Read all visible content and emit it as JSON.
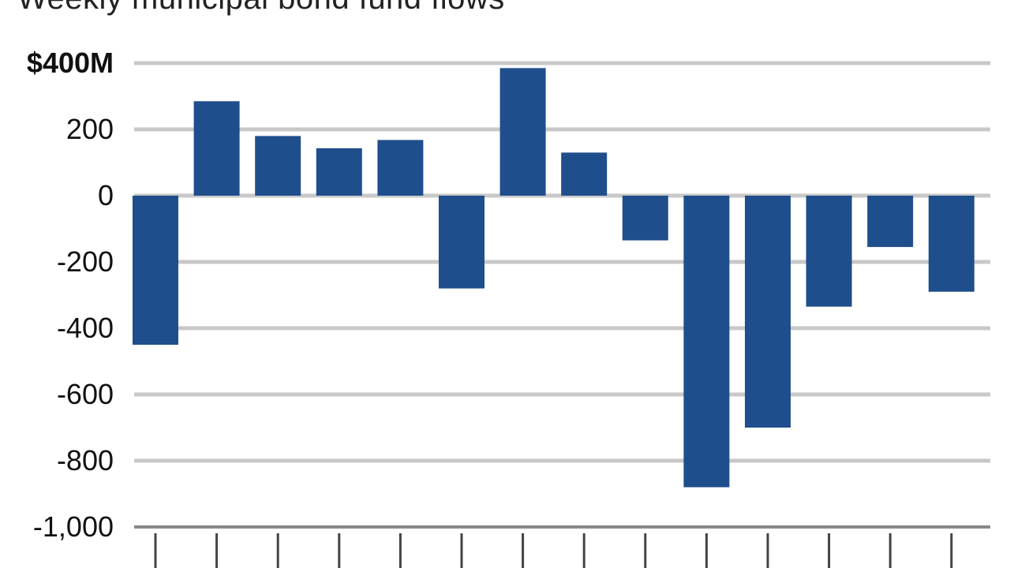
{
  "chart_data": {
    "type": "bar",
    "title": "Weekly municipal bond fund flows",
    "y_tick_labels": [
      "$400M",
      "200",
      "0",
      "-200",
      "-400",
      "-600",
      "-800",
      "-1,000"
    ],
    "y_ticks": [
      400,
      200,
      0,
      -200,
      -400,
      -600,
      -800,
      -1000
    ],
    "ylim": [
      -1000,
      400
    ],
    "values": [
      -450,
      285,
      180,
      143,
      168,
      -280,
      385,
      130,
      -135,
      -880,
      -700,
      -335,
      -155,
      -290
    ],
    "bar_color": "#1f4e8c",
    "grid": true,
    "xlabel": "",
    "ylabel": ""
  }
}
